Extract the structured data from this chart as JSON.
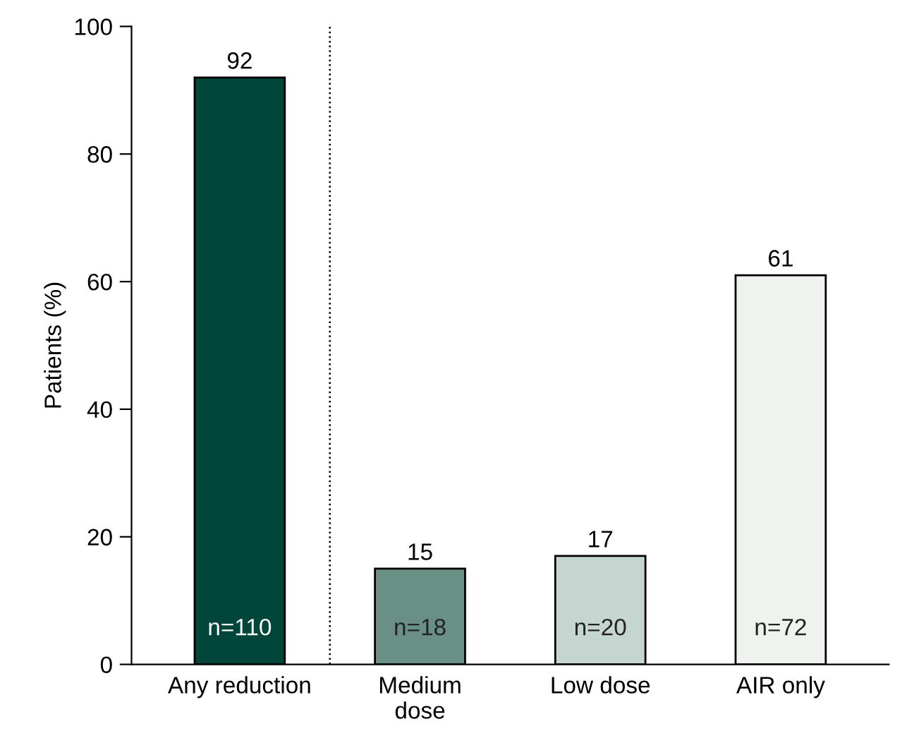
{
  "chart_data": {
    "type": "bar",
    "ylabel": "Patients (%)",
    "categories": [
      "Any reduction",
      "Medium\ndose",
      "Low dose",
      "AIR only"
    ],
    "values": [
      92,
      15,
      17,
      61
    ],
    "colors": [
      "#02453a",
      "#6a8f84",
      "#c5d6d0",
      "#f0f2ef"
    ],
    "data_labels": true,
    "ylim": [
      0,
      100
    ],
    "yticks": [
      0,
      20,
      40,
      60,
      80,
      100
    ],
    "grid": false,
    "annotations": [
      "n=110",
      "n=18",
      "n=20",
      "n=72"
    ]
  }
}
